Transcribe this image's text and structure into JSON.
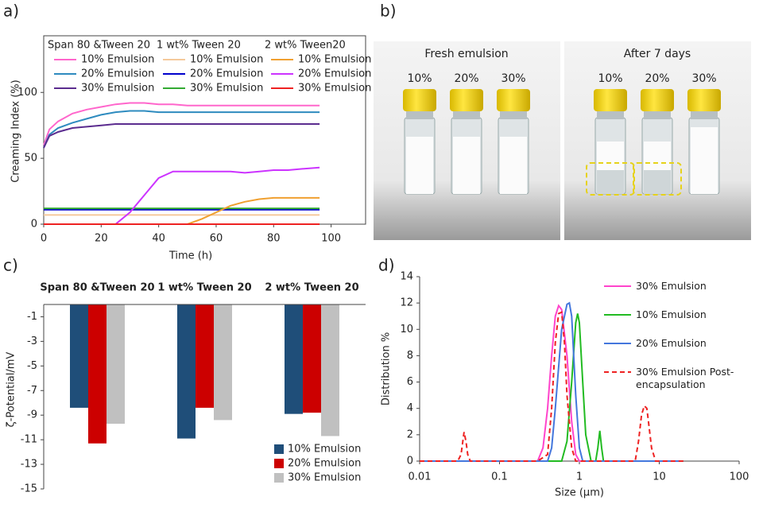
{
  "chart_data": [
    {
      "type": "line",
      "panel_label": "a)",
      "xlabel": "Time (h)",
      "ylabel": "Creaming Index (%)",
      "xlim": [
        0,
        112
      ],
      "xticks": [
        0,
        20,
        40,
        60,
        80,
        100
      ],
      "ylim": [
        0,
        143
      ],
      "yticks": [
        0,
        50,
        100
      ],
      "x": [
        0,
        2,
        5,
        10,
        15,
        20,
        25,
        30,
        35,
        40,
        45,
        50,
        55,
        60,
        65,
        70,
        75,
        80,
        85,
        90,
        96
      ],
      "groups": [
        {
          "name": "Span 80 &Tween 20",
          "series": [
            {
              "name": "10% Emulsion",
              "color": "#ff66cc",
              "values": [
                60,
                72,
                78,
                84,
                87,
                89,
                91,
                92,
                92,
                91,
                91,
                90,
                90,
                90,
                90,
                90,
                90,
                90,
                90,
                90,
                90
              ]
            },
            {
              "name": "20% Emulsion",
              "color": "#2e8bbf",
              "values": [
                58,
                68,
                73,
                77,
                80,
                83,
                85,
                86,
                86,
                85,
                85,
                85,
                85,
                85,
                85,
                85,
                85,
                85,
                85,
                85,
                85
              ]
            },
            {
              "name": "30% Emulsion",
              "color": "#5b2c8f",
              "values": [
                58,
                67,
                70,
                73,
                74,
                75,
                76,
                76,
                76,
                76,
                76,
                76,
                76,
                76,
                76,
                76,
                76,
                76,
                76,
                76,
                76
              ]
            }
          ]
        },
        {
          "name": "1 wt% Tween 20",
          "series": [
            {
              "name": "10% Emulsion",
              "color": "#f5c99b",
              "values": [
                7,
                7,
                7,
                7,
                7,
                7,
                7,
                7,
                7,
                7,
                7,
                7,
                7,
                7,
                7,
                7,
                7,
                7,
                7,
                7,
                7
              ]
            },
            {
              "name": "20% Emulsion",
              "color": "#0000cc",
              "values": [
                11,
                11,
                11,
                11,
                11,
                11,
                11,
                11,
                11,
                11,
                11,
                11,
                11,
                11,
                11,
                11,
                11,
                11,
                11,
                11,
                11
              ]
            },
            {
              "name": "30% Emulsion",
              "color": "#33aa33",
              "values": [
                12,
                12,
                12,
                12,
                12,
                12,
                12,
                12,
                12,
                12,
                12,
                12,
                12,
                12,
                12,
                12,
                12,
                12,
                12,
                12,
                12
              ]
            }
          ]
        },
        {
          "name": "2 wt% Tween20",
          "series": [
            {
              "name": "10% Emulsion",
              "color": "#f0a030",
              "values": [
                0,
                0,
                0,
                0,
                0,
                0,
                0,
                0,
                0,
                0,
                0,
                0,
                4,
                9,
                14,
                17,
                19,
                20,
                20,
                20,
                20
              ]
            },
            {
              "name": "20% Emulsion",
              "color": "#cc33ff",
              "values": [
                0,
                0,
                0,
                0,
                0,
                0,
                0,
                9,
                22,
                35,
                40,
                40,
                40,
                40,
                40,
                39,
                40,
                41,
                41,
                42,
                43
              ]
            },
            {
              "name": "30% Emulsion",
              "color": "#ee2222",
              "values": [
                0,
                0,
                0,
                0,
                0,
                0,
                0,
                0,
                0,
                0,
                0,
                0,
                0,
                0,
                0,
                0,
                0,
                0,
                0,
                0,
                0
              ]
            }
          ]
        }
      ]
    },
    {
      "type": "bar",
      "panel_label": "c)",
      "ylabel": "ζ-Potential/mV",
      "categories": [
        "Span 80 &Tween 20",
        "1 wt% Tween 20",
        "2 wt% Tween 20"
      ],
      "ylim": [
        -15,
        0
      ],
      "yticks": [
        -1,
        -3,
        -5,
        -7,
        -9,
        -11,
        -13,
        -15
      ],
      "series": [
        {
          "name": "10% Emulsion",
          "color": "#1f4e79",
          "values": [
            -8.4,
            -10.9,
            -8.9
          ]
        },
        {
          "name": "20% Emulsion",
          "color": "#cc0000",
          "values": [
            -11.3,
            -8.4,
            -8.8
          ]
        },
        {
          "name": "30% Emulsion",
          "color": "#c0c0c0",
          "values": [
            -9.7,
            -9.4,
            -10.7
          ]
        }
      ]
    },
    {
      "type": "line",
      "panel_label": "d)",
      "xlabel": "Size (µm)",
      "ylabel": "Distribution %",
      "xscale": "log",
      "xlim": [
        0.01,
        100
      ],
      "xticks": [
        0.01,
        0.1,
        1,
        10,
        100
      ],
      "ylim": [
        0,
        14
      ],
      "yticks": [
        0,
        2,
        4,
        6,
        8,
        10,
        12,
        14
      ],
      "series": [
        {
          "name": "30% Emulsion",
          "color": "#ff44cc",
          "dash": false,
          "x": [
            0.01,
            0.3,
            0.35,
            0.4,
            0.45,
            0.5,
            0.55,
            0.6,
            0.7,
            0.8,
            0.9,
            1.0,
            20
          ],
          "values": [
            0,
            0,
            1,
            4,
            8,
            11,
            11.8,
            11.5,
            8,
            3,
            0.5,
            0,
            0
          ]
        },
        {
          "name": "10% Emulsion",
          "color": "#22bb22",
          "dash": false,
          "x": [
            0.01,
            0.6,
            0.7,
            0.8,
            0.9,
            0.95,
            1.0,
            1.1,
            1.2,
            1.4,
            1.6,
            1.7,
            1.8,
            1.9,
            2.0,
            20
          ],
          "values": [
            0,
            0,
            1.5,
            6,
            10.5,
            11.2,
            10.5,
            6,
            2,
            0,
            0,
            1,
            2.3,
            1,
            0,
            0
          ]
        },
        {
          "name": "20% Emulsion",
          "color": "#4477dd",
          "dash": false,
          "x": [
            0.01,
            0.4,
            0.45,
            0.5,
            0.6,
            0.7,
            0.75,
            0.8,
            0.9,
            1.0,
            1.1,
            20
          ],
          "values": [
            0,
            0,
            1,
            4,
            10,
            11.9,
            12,
            11,
            5,
            1,
            0,
            0
          ]
        },
        {
          "name": "30% Emulsion Post-encapsulation",
          "color": "#ee2222",
          "dash": true,
          "x": [
            0.01,
            0.03,
            0.033,
            0.036,
            0.038,
            0.04,
            0.043,
            0.3,
            0.4,
            0.45,
            0.5,
            0.55,
            0.6,
            0.65,
            0.7,
            0.8,
            0.9,
            5,
            5.5,
            6,
            6.5,
            7,
            7.5,
            8,
            9,
            20
          ],
          "values": [
            0,
            0,
            0.5,
            2.2,
            1.5,
            0.5,
            0,
            0,
            0.5,
            4,
            9,
            11.2,
            11.3,
            9,
            5,
            1,
            0,
            0,
            1.5,
            3.5,
            4.2,
            4,
            2.5,
            1,
            0,
            0
          ]
        }
      ]
    }
  ],
  "photo": {
    "panel_label": "b)",
    "images": [
      {
        "caption": "Fresh emulsion",
        "labels": [
          "10%",
          "20%",
          "30%"
        ]
      },
      {
        "caption": "After 7 days",
        "labels": [
          "10%",
          "20%",
          "30%"
        ]
      }
    ]
  }
}
